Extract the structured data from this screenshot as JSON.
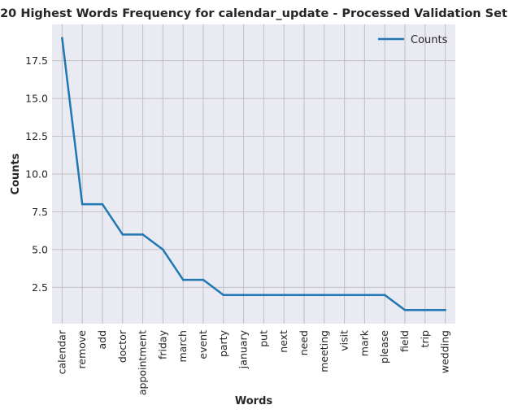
{
  "chart_data": {
    "type": "line",
    "title": "20 Highest Words Frequency for calendar_update - Processed Validation Set",
    "xlabel": "Words",
    "ylabel": "Counts",
    "categories": [
      "calendar",
      "remove",
      "add",
      "doctor",
      "appointment",
      "friday",
      "march",
      "event",
      "party",
      "january",
      "put",
      "next",
      "need",
      "meeting",
      "visit",
      "mark",
      "please",
      "field",
      "trip",
      "wedding"
    ],
    "series": [
      {
        "name": "Counts",
        "values": [
          19,
          8,
          8,
          6,
          6,
          5,
          3,
          3,
          2,
          2,
          2,
          2,
          2,
          2,
          2,
          2,
          2,
          1,
          1,
          1
        ],
        "color": "#1f77b4"
      }
    ],
    "ylim": [
      0.1,
      19.9
    ],
    "yticks": [
      2.5,
      5.0,
      7.5,
      10.0,
      12.5,
      15.0,
      17.5
    ],
    "grid": true,
    "legend_position": "top-right",
    "background_color": "#eaeaf2",
    "grid_color": "#c0c0c0"
  }
}
